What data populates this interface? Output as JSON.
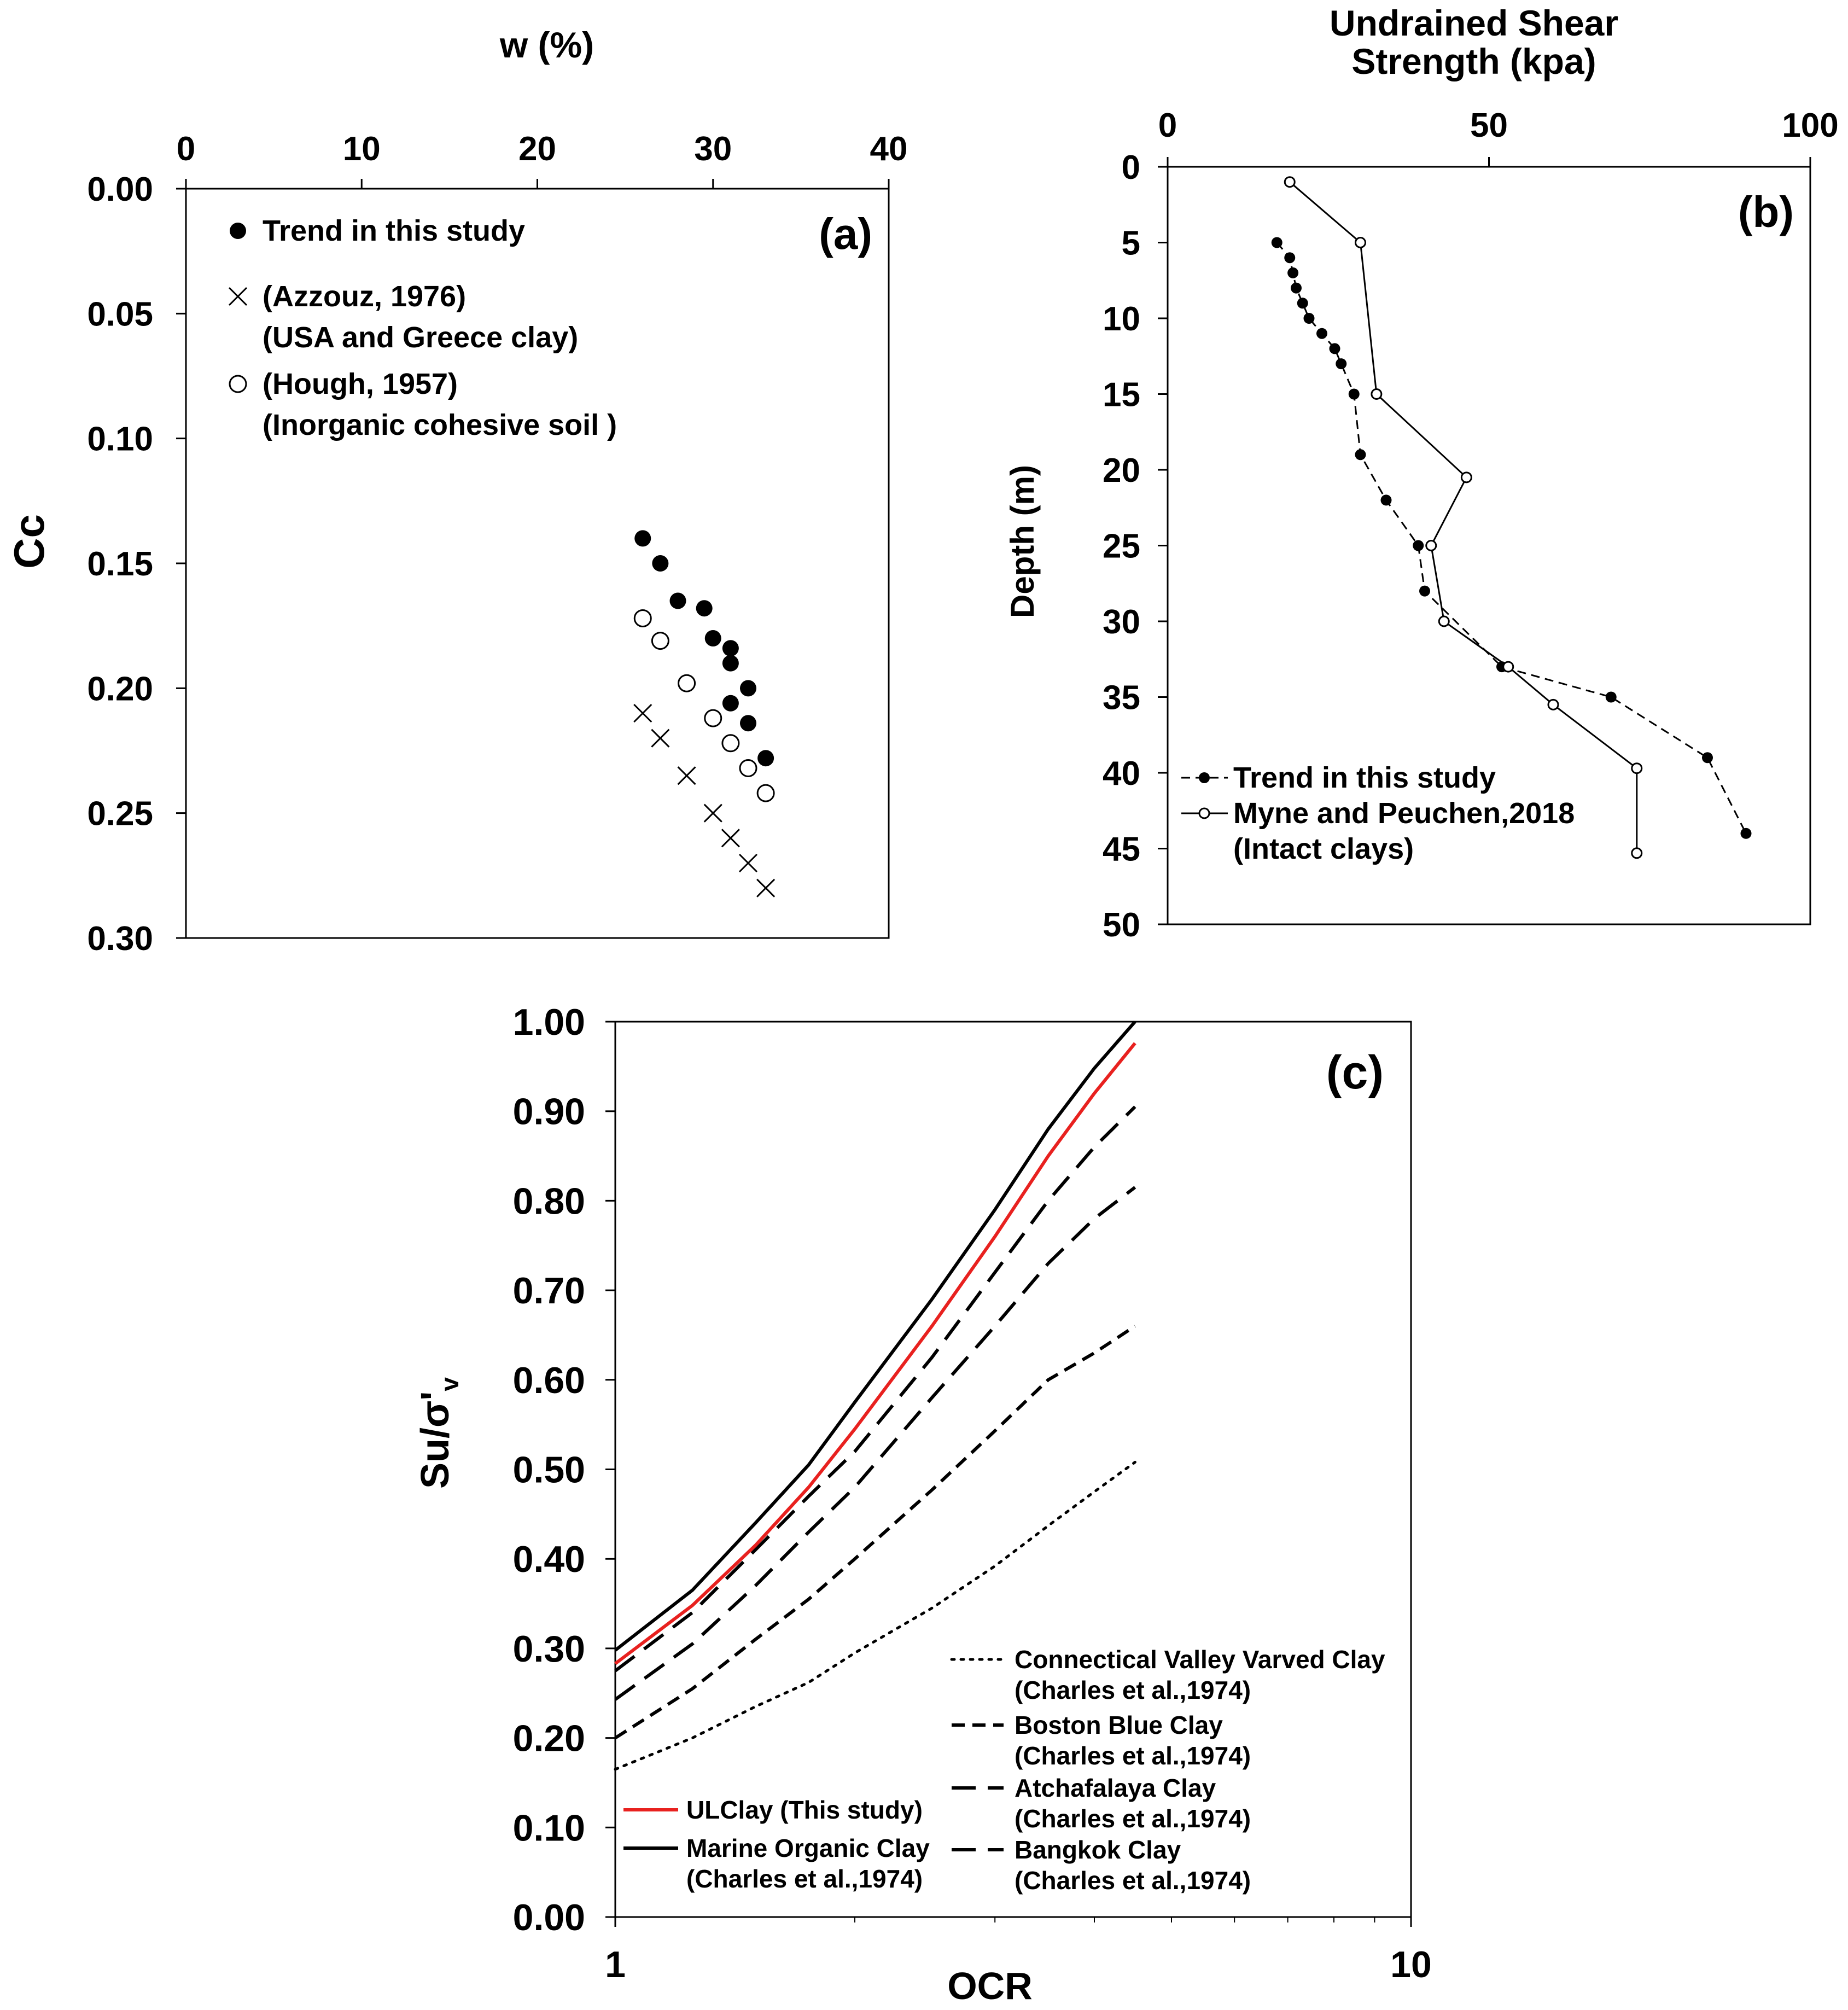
{
  "chart_data": [
    {
      "id": "a",
      "type": "scatter",
      "panel_label": "(a)",
      "title": "",
      "xlabel": "w (%)",
      "ylabel": "Cc",
      "xlim": [
        0,
        40
      ],
      "ylim": [
        0.3,
        0.0
      ],
      "y_inverted": true,
      "x_axis_position": "top",
      "xticks": [
        "0",
        "10",
        "20",
        "30",
        "40"
      ],
      "yticks": [
        "0.00",
        "0.05",
        "0.10",
        "0.15",
        "0.20",
        "0.25",
        "0.30"
      ],
      "grid": false,
      "legend_position": "top-left",
      "series": [
        {
          "name": "Trend in this study",
          "marker": "filled-circle",
          "x": [
            26.0,
            27.0,
            28.0,
            29.5,
            30.0,
            31.0,
            31.0,
            32.0,
            31.0,
            32.0,
            33.0
          ],
          "y": [
            0.14,
            0.15,
            0.165,
            0.168,
            0.18,
            0.184,
            0.19,
            0.2,
            0.206,
            0.214,
            0.228
          ]
        },
        {
          "name": "(Azzouz, 1976)",
          "sub_label": "(USA and Greece clay)",
          "marker": "cross",
          "x": [
            26.0,
            27.0,
            28.5,
            30.0,
            31.0,
            32.0,
            33.0
          ],
          "y": [
            0.21,
            0.22,
            0.235,
            0.25,
            0.26,
            0.27,
            0.28
          ]
        },
        {
          "name": "(Hough, 1957)",
          "sub_label": "(Inorganic cohesive soil )",
          "marker": "open-circle",
          "x": [
            26.0,
            27.0,
            28.5,
            30.0,
            31.0,
            32.0,
            33.0
          ],
          "y": [
            0.172,
            0.181,
            0.198,
            0.212,
            0.222,
            0.232,
            0.242
          ]
        }
      ]
    },
    {
      "id": "b",
      "type": "line",
      "panel_label": "(b)",
      "title": "",
      "xlabel_line1": "Undrained Shear",
      "xlabel_line2": "Strength (kpa)",
      "ylabel": "Depth (m)",
      "xlim": [
        0,
        100
      ],
      "ylim": [
        50,
        0
      ],
      "y_inverted": true,
      "x_axis_position": "top",
      "xticks": [
        "0",
        "50",
        "100"
      ],
      "yticks": [
        "0",
        "5",
        "10",
        "15",
        "20",
        "25",
        "30",
        "35",
        "40",
        "45",
        "50"
      ],
      "grid": false,
      "legend_position": "bottom-left",
      "series": [
        {
          "name": "Trend in this study",
          "style": "dashed",
          "marker": "filled-circle",
          "x": [
            17,
            19,
            19.5,
            20,
            21,
            22,
            24,
            26,
            27,
            29,
            30,
            34,
            39,
            40,
            52,
            69,
            84,
            90
          ],
          "y": [
            5,
            6,
            7,
            8,
            9,
            10,
            11,
            12,
            13,
            15,
            19,
            22,
            25,
            28,
            33,
            35,
            39,
            44
          ]
        },
        {
          "name": "Myne and Peuchen,2018",
          "sub_label": "(Intact clays)",
          "style": "solid",
          "marker": "open-circle",
          "x": [
            19,
            30,
            32.5,
            46.5,
            41,
            43,
            53,
            60,
            73,
            73
          ],
          "y": [
            1,
            5,
            15,
            20.5,
            25,
            30,
            33,
            35.5,
            39.7,
            45.3
          ]
        }
      ]
    },
    {
      "id": "c",
      "type": "line",
      "panel_label": "(c)",
      "title": "",
      "xlabel": "OCR",
      "ylabel": "Su/σ'",
      "ylabel_sub": "v",
      "x_scale": "log",
      "xlim": [
        1,
        10
      ],
      "ylim": [
        0.0,
        1.0
      ],
      "xticks": [
        "1",
        "10"
      ],
      "yticks": [
        "0.00",
        "0.10",
        "0.20",
        "0.30",
        "0.40",
        "0.50",
        "0.60",
        "0.70",
        "0.80",
        "0.90",
        "1.00"
      ],
      "grid": false,
      "legend_position": "bottom",
      "x": [
        1.0,
        1.25,
        1.5,
        1.75,
        2.0,
        2.5,
        3.0,
        3.5,
        4.0,
        4.5
      ],
      "series": [
        {
          "name": "Connectical Valley Varved Clay",
          "ref": "(Charles et al.,1974)",
          "style": "dotted",
          "color": "#000000",
          "values": [
            0.165,
            0.2,
            0.235,
            0.262,
            0.295,
            0.345,
            0.392,
            0.437,
            0.475,
            0.508
          ]
        },
        {
          "name": "Boston Blue Clay",
          "ref": "(Charles et al.,1974)",
          "style": "dashed",
          "color": "#000000",
          "values": [
            0.2,
            0.255,
            0.31,
            0.355,
            0.4,
            0.477,
            0.543,
            0.6,
            0.63,
            0.66
          ]
        },
        {
          "name": "Atchafalaya Clay",
          "ref": "(Charles et al.,1974)",
          "style": "long-dash",
          "color": "#000000",
          "values": [
            0.243,
            0.305,
            0.37,
            0.43,
            0.48,
            0.58,
            0.66,
            0.73,
            0.78,
            0.815
          ]
        },
        {
          "name": "Bangkok Clay",
          "ref": "(Charles et al.,1974)",
          "style": "long-dash",
          "color": "#000000",
          "values": [
            0.275,
            0.34,
            0.41,
            0.47,
            0.52,
            0.625,
            0.72,
            0.8,
            0.86,
            0.905
          ]
        },
        {
          "name": "ULClay (This study)",
          "ref": "",
          "style": "solid",
          "color": "#e8211f",
          "values": [
            0.283,
            0.348,
            0.415,
            0.48,
            0.545,
            0.66,
            0.76,
            0.85,
            0.92,
            0.976
          ]
        },
        {
          "name": "Marine Organic Clay",
          "ref": "(Charles et al.,1974)",
          "style": "solid",
          "color": "#000000",
          "values": [
            0.298,
            0.365,
            0.44,
            0.505,
            0.575,
            0.69,
            0.79,
            0.88,
            0.948,
            1.0
          ]
        }
      ],
      "legend_left": [
        "ULClay (This study)",
        "Marine Organic Clay"
      ],
      "legend_right": [
        "Connectical Valley Varved Clay",
        "Boston Blue Clay",
        "Atchafalaya Clay",
        "Bangkok Clay"
      ]
    }
  ]
}
